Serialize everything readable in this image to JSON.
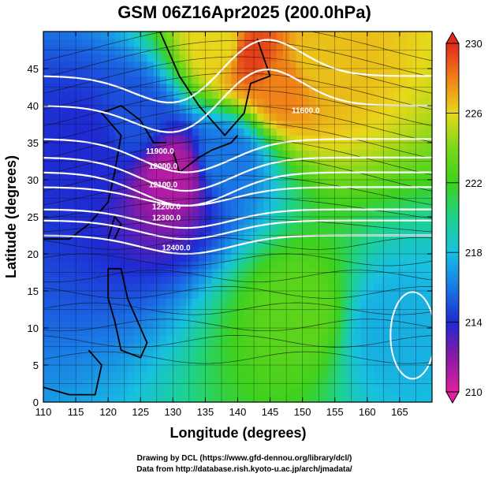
{
  "chart_data": {
    "type": "heatmap",
    "title": "GSM 06Z16Apr2025 (200.0hPa)",
    "xlabel": "Longitude (degrees)",
    "ylabel": "Latitude  (degrees)",
    "xlim": [
      110,
      170
    ],
    "ylim": [
      0,
      50
    ],
    "x_ticks": [
      110,
      115,
      120,
      125,
      130,
      135,
      140,
      145,
      150,
      155,
      160,
      165
    ],
    "y_ticks": [
      0,
      5,
      10,
      15,
      20,
      25,
      30,
      35,
      40,
      45
    ],
    "grid": true,
    "colorbar": {
      "position": "right",
      "range": [
        210,
        230
      ],
      "ticks": [
        210,
        214,
        218,
        222,
        226,
        230
      ],
      "stops": [
        {
          "value": 210,
          "color": "#e020a0"
        },
        {
          "value": 212,
          "color": "#8a1aa6"
        },
        {
          "value": 214,
          "color": "#1e2ad2"
        },
        {
          "value": 216,
          "color": "#1a78e6"
        },
        {
          "value": 218,
          "color": "#18c0e0"
        },
        {
          "value": 220,
          "color": "#1ed28a"
        },
        {
          "value": 222,
          "color": "#3ed11e"
        },
        {
          "value": 224,
          "color": "#7ad81a"
        },
        {
          "value": 226,
          "color": "#e8d81a"
        },
        {
          "value": 228,
          "color": "#f08018"
        },
        {
          "value": 230,
          "color": "#e02a1a"
        }
      ]
    },
    "field": [
      {
        "lon": 142,
        "lat": 47,
        "value": 229.5
      },
      {
        "lon": 147,
        "lat": 43,
        "value": 228.0
      },
      {
        "lon": 138,
        "lat": 48,
        "value": 226.0
      },
      {
        "lon": 152,
        "lat": 46,
        "value": 226.5
      },
      {
        "lon": 130,
        "lat": 31,
        "value": 211.0
      },
      {
        "lon": 124,
        "lat": 38,
        "value": 215.0
      },
      {
        "lon": 117,
        "lat": 35,
        "value": 214.0
      },
      {
        "lon": 138,
        "lat": 33,
        "value": 216.0
      },
      {
        "lon": 163,
        "lat": 10,
        "value": 217.5
      },
      {
        "lon": 150,
        "lat": 12,
        "value": 223.0
      }
    ],
    "contours": [
      {
        "label": "11900.0",
        "lon": 128.0,
        "lat": 33.5
      },
      {
        "label": "12000.0",
        "lon": 128.5,
        "lat": 31.5
      },
      {
        "label": "12100.0",
        "lon": 128.5,
        "lat": 29.0
      },
      {
        "label": "12200.0",
        "lon": 129.0,
        "lat": 26.0
      },
      {
        "label": "12300.0",
        "lon": 129.0,
        "lat": 24.5
      },
      {
        "label": "12400.0",
        "lon": 130.5,
        "lat": 20.5
      },
      {
        "label": "11600.0",
        "lon": 150.5,
        "lat": 39.0
      }
    ]
  },
  "credits": {
    "drawing": "Drawing by DCL (https://www.gfd-dennou.org/library/dcl/)",
    "data": "Data from http://database.rish.kyoto-u.ac.jp/arch/jmadata/"
  }
}
